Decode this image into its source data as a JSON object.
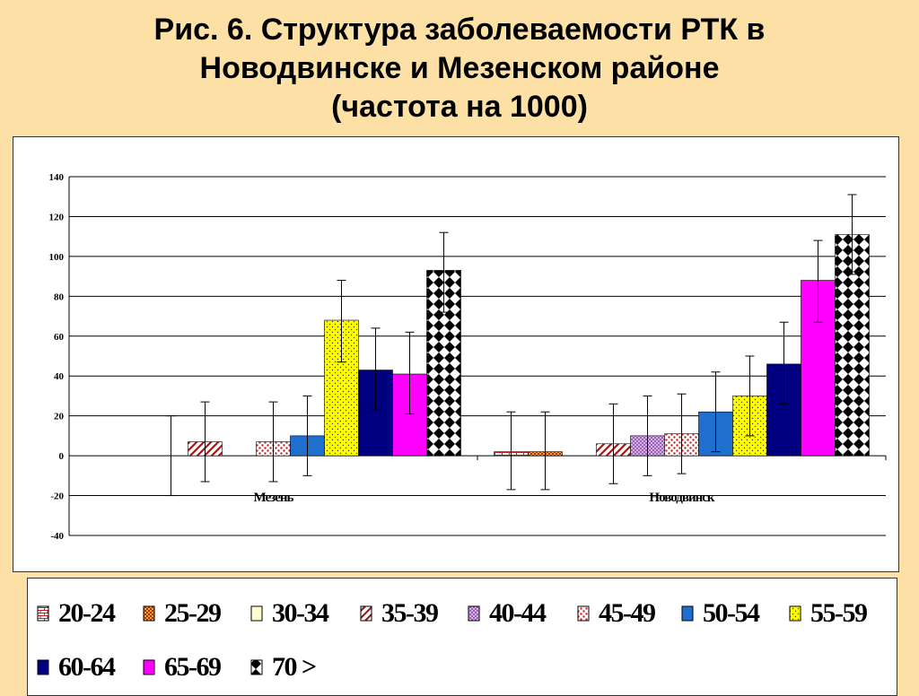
{
  "title": {
    "line1": "Рис. 6. Структура заболеваемости РТК в",
    "line2": "Новодвинске и Мезенском районе",
    "line3": "(частота на 1000)"
  },
  "colors": {
    "page_background": "#FCE0A6",
    "chart_background": "#FFFFFF"
  },
  "chart_data": {
    "type": "bar",
    "title": "Рис. 6. Структура заболеваемости РТК в Новодвинске и Мезенском районе (частота на 1000)",
    "categories": [
      "Мезень",
      "Новодвинск"
    ],
    "ylim": [
      -40,
      140
    ],
    "yticks": [
      -40,
      -20,
      0,
      20,
      40,
      60,
      80,
      100,
      120,
      140
    ],
    "grid": true,
    "legend_position": "bottom",
    "error_bars": true,
    "series": [
      {
        "name": "20-24",
        "values": [
          0,
          2
        ],
        "error_low": [
          0,
          -17
        ],
        "error_high": [
          0,
          22
        ],
        "color": "#FFFFFF",
        "pattern": "brick-red"
      },
      {
        "name": "25-29",
        "values": [
          0,
          2
        ],
        "error_low": [
          0,
          -17
        ],
        "error_high": [
          0,
          22
        ],
        "color": "#F5A623",
        "pattern": "checker-red"
      },
      {
        "name": "30-34",
        "values": [
          0,
          0
        ],
        "error_low": [
          -20,
          0
        ],
        "error_high": [
          20,
          0
        ],
        "color": "#FFFFD0",
        "pattern": "solid"
      },
      {
        "name": "35-39",
        "values": [
          7,
          6
        ],
        "error_low": [
          -13,
          -14
        ],
        "error_high": [
          27,
          26
        ],
        "color": "#FFFFFF",
        "pattern": "diagonal-red"
      },
      {
        "name": "40-44",
        "values": [
          0,
          10
        ],
        "error_low": [
          0,
          -10
        ],
        "error_high": [
          0,
          30
        ],
        "color": "#C9A0DC",
        "pattern": "dots-purple"
      },
      {
        "name": "45-49",
        "values": [
          7,
          11
        ],
        "error_low": [
          -13,
          -9
        ],
        "error_high": [
          27,
          31
        ],
        "color": "#FFFFFF",
        "pattern": "dots-red"
      },
      {
        "name": "50-54",
        "values": [
          10,
          22
        ],
        "error_low": [
          -10,
          2
        ],
        "error_high": [
          30,
          42
        ],
        "color": "#1F6FCF",
        "pattern": "solid"
      },
      {
        "name": "55-59",
        "values": [
          68,
          30
        ],
        "error_low": [
          47,
          10
        ],
        "error_high": [
          88,
          50
        ],
        "color": "#FFFF00",
        "pattern": "dots-dark"
      },
      {
        "name": "60-64",
        "values": [
          43,
          46
        ],
        "error_low": [
          23,
          26
        ],
        "error_high": [
          64,
          67
        ],
        "color": "#000080",
        "pattern": "solid"
      },
      {
        "name": "65-69",
        "values": [
          41,
          88
        ],
        "error_low": [
          21,
          67
        ],
        "error_high": [
          62,
          108
        ],
        "color": "#FF00FF",
        "pattern": "solid"
      },
      {
        "name": "70 >",
        "values": [
          93,
          111
        ],
        "error_low": [
          72,
          91
        ],
        "error_high": [
          112,
          131
        ],
        "color": "#FFFFFF",
        "pattern": "diamond-black"
      }
    ]
  }
}
